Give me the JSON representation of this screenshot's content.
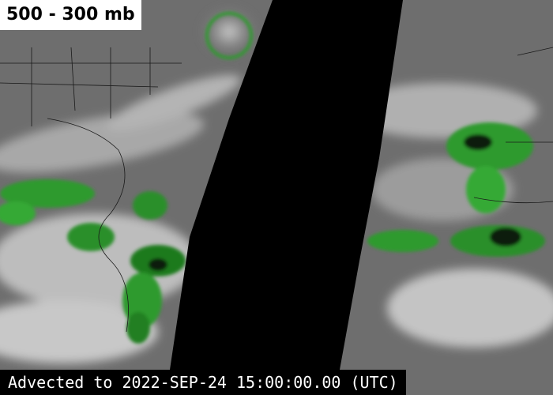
{
  "header": {
    "title": "500 - 300 mb"
  },
  "footer": {
    "timestamp": "Advected to 2022-SEP-24 15:00:00.00 (UTC)"
  }
}
